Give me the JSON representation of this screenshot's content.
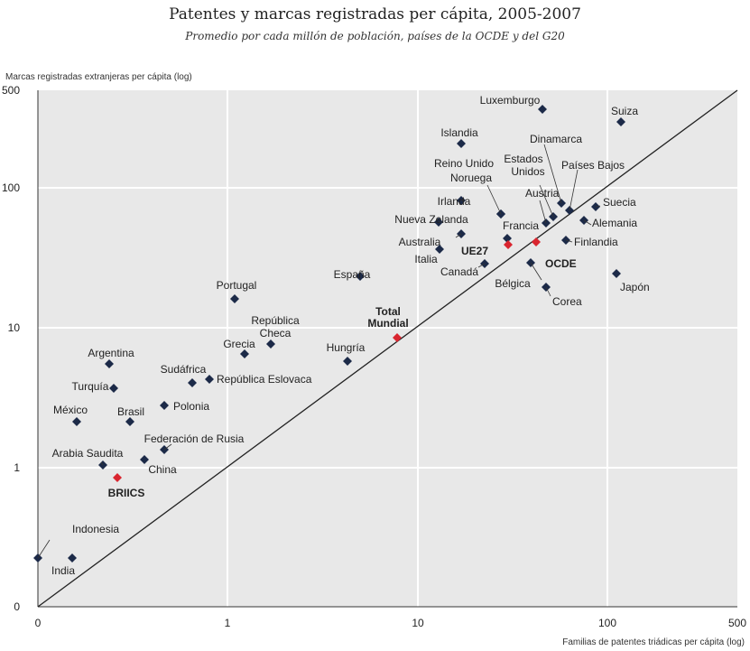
{
  "chart_data": {
    "type": "scatter",
    "title": "Patentes y marcas registradas per cápita, 2005-2007",
    "subtitle": "Promedio por cada millón de población, países de la OCDE y del G20",
    "xlabel": "Familias de patentes triádicas per cápita (log)",
    "ylabel": "Marcas registradas extranjeras per cápita (log)",
    "x_scale": "log",
    "y_scale": "log",
    "x_ticks": [
      "0",
      "1",
      "10",
      "100",
      "500"
    ],
    "y_ticks": [
      "0",
      "1",
      "10",
      "100",
      "500"
    ],
    "grid": true,
    "reference_line": "diagonal",
    "colors": {
      "background": "#e8e8e8",
      "point": "#1c2a48",
      "highlight": "#d9252f",
      "grid": "#ffffff"
    },
    "points": [
      {
        "name": "Luxemburgo",
        "x": 50,
        "y": 400
      },
      {
        "name": "Suiza",
        "x": 125,
        "y": 320
      },
      {
        "name": "Islandia",
        "x": 17,
        "y": 220
      },
      {
        "name": "Dinamarca",
        "x": 60,
        "y": 82
      },
      {
        "name": "Países Bajos",
        "x": 65,
        "y": 70
      },
      {
        "name": "Estados Unidos",
        "x": 55,
        "y": 62
      },
      {
        "name": "Reino Unido",
        "x": 28,
        "y": 65
      },
      {
        "name": "Noruega",
        "x": 26,
        "y": 46
      },
      {
        "name": "Austria",
        "x": 50,
        "y": 55
      },
      {
        "name": "Irlanda",
        "x": 17,
        "y": 82
      },
      {
        "name": "Suecia",
        "x": 90,
        "y": 75
      },
      {
        "name": "Alemania",
        "x": 75,
        "y": 58
      },
      {
        "name": "Nueva Zelanda",
        "x": 13,
        "y": 57
      },
      {
        "name": "Francia",
        "x": 38,
        "y": 42
      },
      {
        "name": "Australia",
        "x": 17,
        "y": 47
      },
      {
        "name": "Finlandia",
        "x": 63,
        "y": 42
      },
      {
        "name": "Italia",
        "x": 14,
        "y": 37
      },
      {
        "name": "Canadá",
        "x": 22,
        "y": 28
      },
      {
        "name": "Bélgica",
        "x": 40,
        "y": 40
      },
      {
        "name": "España",
        "x": 5,
        "y": 23
      },
      {
        "name": "Japón",
        "x": 115,
        "y": 24
      },
      {
        "name": "Corea",
        "x": 50,
        "y": 19
      },
      {
        "name": "Portugal",
        "x": 1.1,
        "y": 16
      },
      {
        "name": "República Checa",
        "x": 1.7,
        "y": 7.5
      },
      {
        "name": "Grecia",
        "x": 1.2,
        "y": 6.5
      },
      {
        "name": "Hungría",
        "x": 4.3,
        "y": 5.8
      },
      {
        "name": "Argentina",
        "x": 0.3,
        "y": 5.5
      },
      {
        "name": "Sudáfrica",
        "x": 0.65,
        "y": 4
      },
      {
        "name": "República Eslovaca",
        "x": 0.8,
        "y": 4.2
      },
      {
        "name": "Turquía",
        "x": 0.32,
        "y": 3.8
      },
      {
        "name": "México",
        "x": 0.17,
        "y": 2.1
      },
      {
        "name": "Brasil",
        "x": 0.33,
        "y": 2.1
      },
      {
        "name": "Polonia",
        "x": 0.5,
        "y": 2.7
      },
      {
        "name": "Federación de Rusia",
        "x": 0.5,
        "y": 1.3
      },
      {
        "name": "Arabia Saudita",
        "x": 0.23,
        "y": 1.05
      },
      {
        "name": "China",
        "x": 0.38,
        "y": 1.15
      },
      {
        "name": "Indonesia",
        "x": 0.02,
        "y": 0.3
      },
      {
        "name": "India",
        "x": 0.15,
        "y": 0.3
      }
    ],
    "highlights": [
      {
        "name": "UE27",
        "x": 30,
        "y": 40
      },
      {
        "name": "OCDE",
        "x": 43,
        "y": 40
      },
      {
        "name": "Total Mundial",
        "x": 8,
        "y": 8.5
      },
      {
        "name": "BRIICS",
        "x": 0.27,
        "y": 0.85
      }
    ]
  }
}
